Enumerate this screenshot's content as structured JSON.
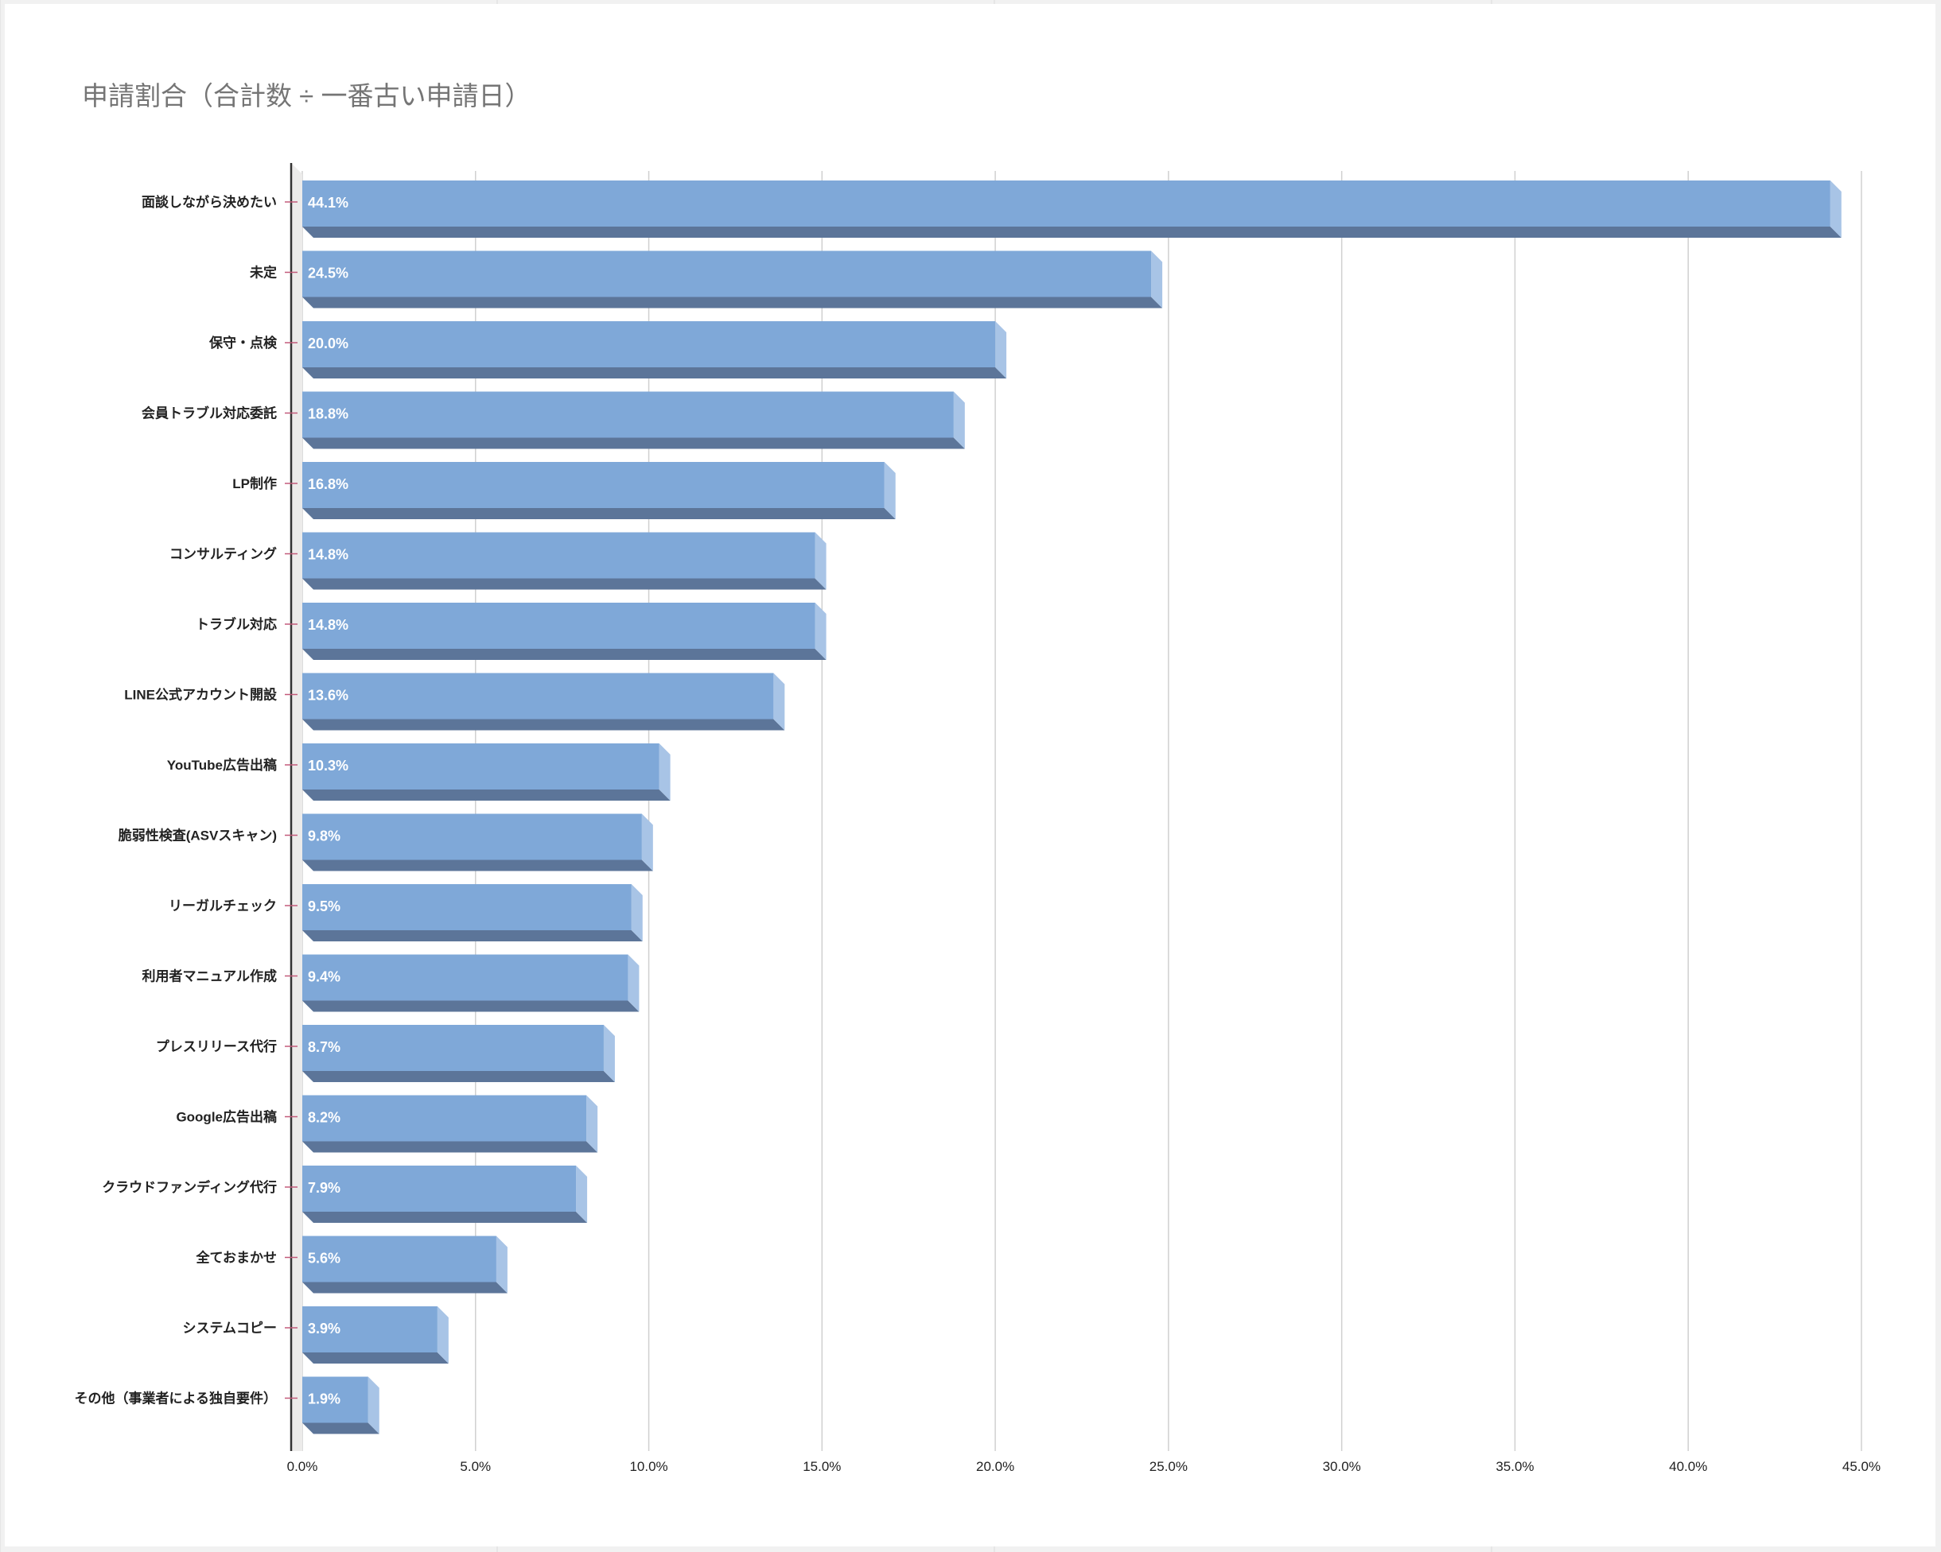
{
  "chart_data": {
    "type": "bar",
    "orientation": "horizontal",
    "style": "3d",
    "title": "申請割合（合計数 ÷ 一番古い申請日）",
    "categories": [
      "面談しながら決めたい",
      "未定",
      "保守・点検",
      "会員トラブル対応委託",
      "LP制作",
      "コンサルティング",
      "トラブル対応",
      "LINE公式アカウント開設",
      "YouTube広告出稿",
      "脆弱性検査(ASVスキャン)",
      "リーガルチェック",
      "利用者マニュアル作成",
      "プレスリリース代行",
      "Google広告出稿",
      "クラウドファンディング代行",
      "全ておまかせ",
      "システムコピー",
      "その他（事業者による独自要件）"
    ],
    "values": [
      44.1,
      24.5,
      20.0,
      18.8,
      16.8,
      14.8,
      14.8,
      13.6,
      10.3,
      9.8,
      9.5,
      9.4,
      8.7,
      8.2,
      7.9,
      5.6,
      3.9,
      1.9
    ],
    "data_labels": [
      "44.1%",
      "24.5%",
      "20.0%",
      "18.8%",
      "16.8%",
      "14.8%",
      "14.8%",
      "13.6%",
      "10.3%",
      "9.8%",
      "9.5%",
      "9.4%",
      "8.7%",
      "8.2%",
      "7.9%",
      "5.6%",
      "3.9%",
      "1.9%"
    ],
    "xlim": [
      0,
      45
    ],
    "xticks": [
      0,
      5,
      10,
      15,
      20,
      25,
      30,
      35,
      40,
      45
    ],
    "xtick_labels": [
      "0.0%",
      "5.0%",
      "10.0%",
      "15.0%",
      "20.0%",
      "25.0%",
      "30.0%",
      "35.0%",
      "40.0%",
      "45.0%"
    ],
    "xlabel": "",
    "ylabel": "",
    "grid": true,
    "legend": "none",
    "colors": {
      "bar_front": "#7fa8d8",
      "bar_side": "#5c7599",
      "bar_top": "#a8c4e6",
      "grid": "#d0d0d0",
      "axis": "#333333",
      "tick_mark": "#c25a7a",
      "title": "#757575"
    }
  }
}
